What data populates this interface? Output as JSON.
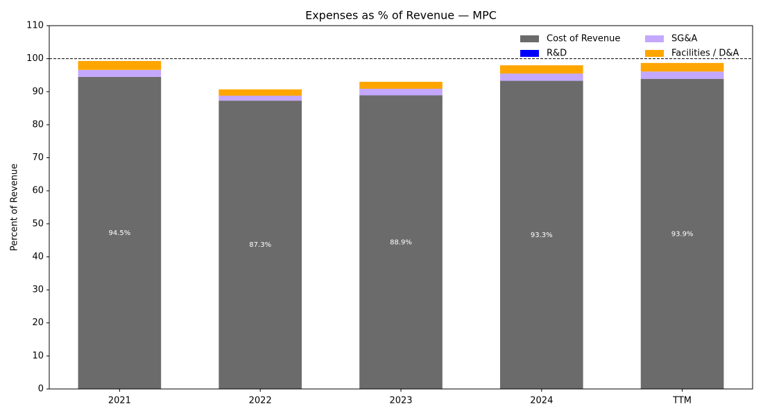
{
  "chart_data": {
    "type": "stacked_bar",
    "title": "Expenses as % of Revenue — MPC",
    "y_label": "Percent of Revenue",
    "categories": [
      "2021",
      "2022",
      "2023",
      "2024",
      "TTM"
    ],
    "series": [
      {
        "name": "Cost of Revenue",
        "color": "#6b6b6b",
        "values": [
          94.5,
          87.3,
          88.9,
          93.3,
          93.9
        ],
        "value_labels": [
          "94.5%",
          "87.3%",
          "88.9%",
          "93.3%",
          "93.9%"
        ]
      },
      {
        "name": "R&D",
        "color": "#0000ff",
        "values": [
          0,
          0,
          0,
          0,
          0
        ]
      },
      {
        "name": "SG&A",
        "color": "#c4a8ff",
        "values": [
          2.1,
          1.5,
          2.0,
          2.2,
          2.2
        ]
      },
      {
        "name": "Facilities / D&A",
        "color": "#ffa500",
        "values": [
          2.7,
          1.9,
          2.1,
          2.5,
          2.6
        ]
      }
    ],
    "ylim": [
      0,
      110
    ],
    "yticks": [
      0,
      10,
      20,
      30,
      40,
      50,
      60,
      70,
      80,
      90,
      100,
      110
    ],
    "reference_line": 100,
    "legend": "upper right",
    "legend_columns": 2
  }
}
